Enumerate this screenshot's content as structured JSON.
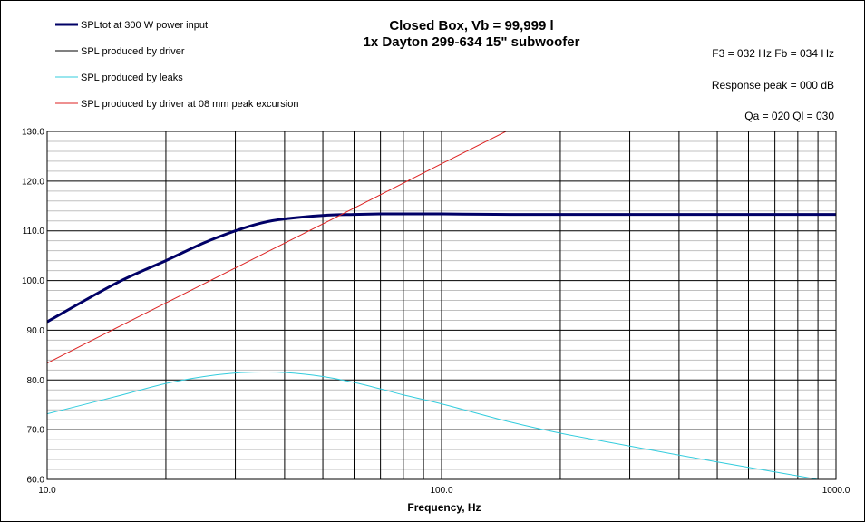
{
  "chart_data": {
    "type": "line",
    "title": [
      "Closed Box, Vb = 99,999 l",
      "1x Dayton 299-634 15\" subwoofer"
    ],
    "info": [
      "F3 = 032 Hz  Fb = 034 Hz",
      "Response  peak = 000 dB",
      "Qa = 020  Ql = 030"
    ],
    "xlabel": "Frequency, Hz",
    "ylabel": "",
    "x_scale": "log",
    "xlim": [
      10,
      1000
    ],
    "ylim": [
      60,
      130
    ],
    "x_ticks": [
      {
        "value": 10,
        "label": "10.0"
      },
      {
        "value": 100,
        "label": "100.0"
      },
      {
        "value": 1000,
        "label": "1000.0"
      }
    ],
    "y_ticks": [
      {
        "value": 60,
        "label": "60.0"
      },
      {
        "value": 70,
        "label": "70.0"
      },
      {
        "value": 80,
        "label": "80.0"
      },
      {
        "value": 90,
        "label": "90.0"
      },
      {
        "value": 100,
        "label": "100.0"
      },
      {
        "value": 110,
        "label": "110.0"
      },
      {
        "value": 120,
        "label": "120.0"
      },
      {
        "value": 130,
        "label": "130.0"
      }
    ],
    "grid": true,
    "legend_position": "top-left",
    "series": [
      {
        "name": "SPLtot at 300 W power input",
        "color": "#000066",
        "x": [
          10,
          15,
          20,
          25,
          30,
          35,
          40,
          50,
          60,
          70,
          80,
          100,
          150,
          200,
          300,
          500,
          700,
          1000
        ],
        "y": [
          91.7,
          99.5,
          104.0,
          107.6,
          110.0,
          111.6,
          112.4,
          113.1,
          113.3,
          113.4,
          113.4,
          113.4,
          113.3,
          113.3,
          113.3,
          113.3,
          113.3,
          113.3
        ]
      },
      {
        "name": "SPL produced by driver",
        "color": "#000000",
        "x": [],
        "y": []
      },
      {
        "name": "SPL produced by leaks",
        "color": "#33CCDD",
        "x": [
          10,
          15,
          20,
          25,
          30,
          35,
          40,
          50,
          60,
          70,
          80,
          100,
          150,
          200,
          300,
          500,
          700,
          900
        ],
        "y": [
          73.2,
          76.7,
          79.3,
          80.7,
          81.4,
          81.6,
          81.5,
          80.7,
          79.5,
          78.2,
          77.0,
          75.2,
          71.5,
          69.3,
          66.7,
          63.5,
          61.5,
          60.0
        ]
      },
      {
        "name": "SPL produced by driver at 08 mm peak excursion",
        "color": "#DD2222",
        "x": [
          10,
          20,
          50,
          100,
          150
        ],
        "y": [
          83.4,
          95.5,
          111.4,
          123.5,
          130.5
        ]
      }
    ]
  }
}
